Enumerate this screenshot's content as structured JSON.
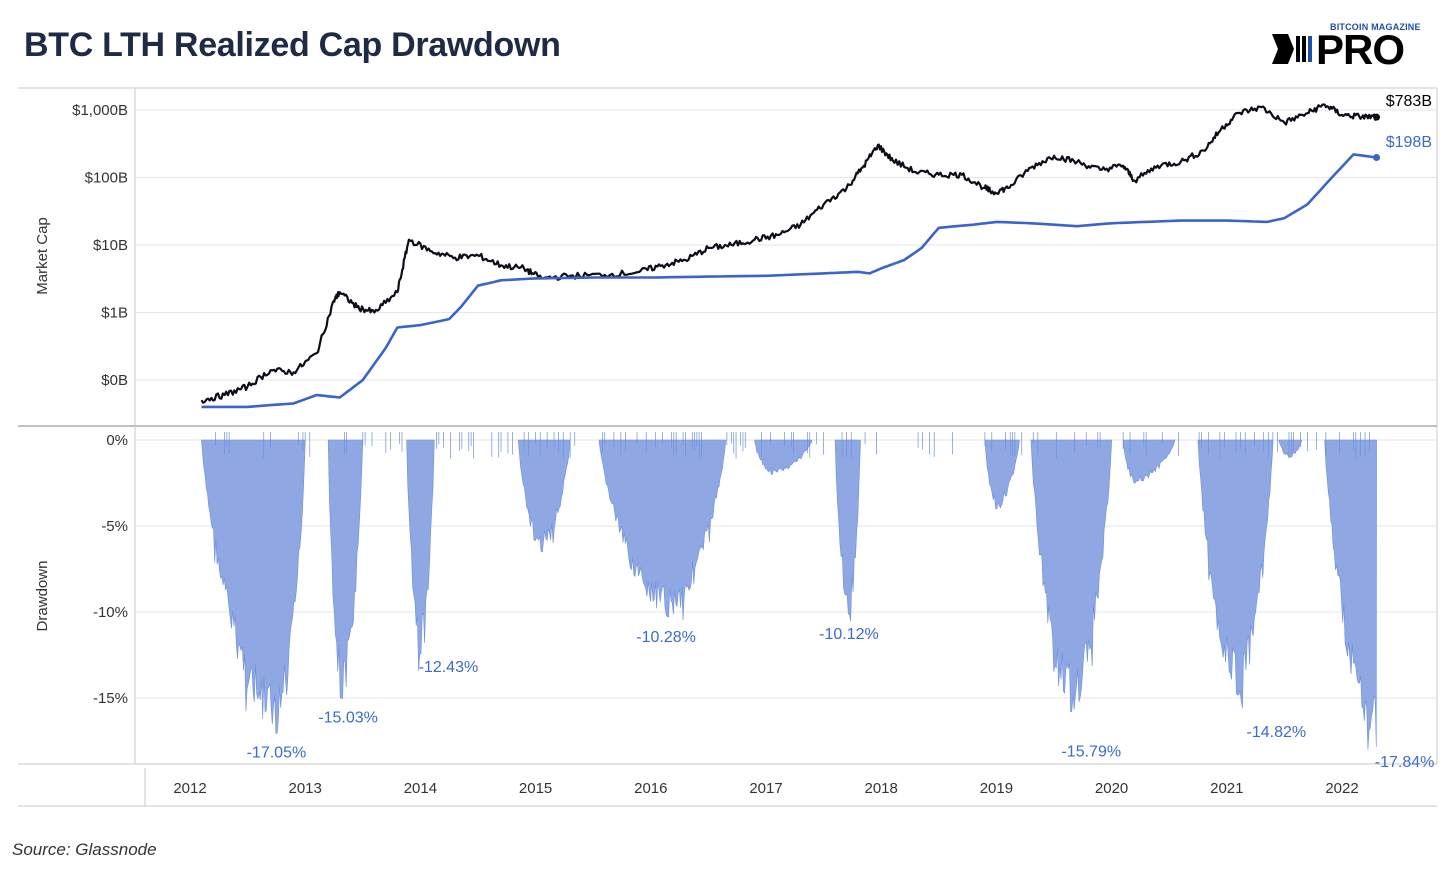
{
  "title": "BTC LTH Realized Cap Drawdown",
  "logo": {
    "top": "BITCOIN MAGAZINE",
    "main": "PRO"
  },
  "source": "Source: Glassnode",
  "colors": {
    "market_cap": "#0d0d1a",
    "realized_cap": "#3a64c8",
    "drawdown_fill": "#8fa8e3",
    "drawdown_edge": "#6d8fdc",
    "annotation": "#3b6ad0",
    "grid": "#e6e6e6",
    "frame": "#c8c8c8"
  },
  "chart_data": [
    {
      "type": "line",
      "ylabel": "Market Cap",
      "yscale": "log",
      "yticks": [
        "$0B",
        "$1B",
        "$10B",
        "$100B",
        "$1,000B"
      ],
      "ytick_values": [
        0.1,
        1,
        10,
        100,
        1000
      ],
      "xlabel": "",
      "xticks": [
        "2012",
        "2013",
        "2014",
        "2015",
        "2016",
        "2017",
        "2018",
        "2019",
        "2020",
        "2021",
        "2022"
      ],
      "series": [
        {
          "key": "market_cap",
          "end_label": "$783B",
          "x": [
            2012.1,
            2012.3,
            2012.5,
            2012.7,
            2012.9,
            2013.1,
            2013.25,
            2013.3,
            2013.45,
            2013.6,
            2013.8,
            2013.9,
            2014.1,
            2014.3,
            2014.5,
            2014.7,
            2014.9,
            2015.05,
            2015.3,
            2015.6,
            2015.9,
            2016.1,
            2016.3,
            2016.5,
            2016.7,
            2016.9,
            2017.1,
            2017.3,
            2017.5,
            2017.7,
            2017.85,
            2017.97,
            2018.1,
            2018.3,
            2018.5,
            2018.7,
            2018.9,
            2018.97,
            2019.1,
            2019.3,
            2019.5,
            2019.7,
            2019.9,
            2020.1,
            2020.2,
            2020.4,
            2020.6,
            2020.8,
            2020.95,
            2021.1,
            2021.3,
            2021.5,
            2021.7,
            2021.85,
            2022.0,
            2022.15,
            2022.3
          ],
          "y": [
            0.05,
            0.06,
            0.08,
            0.14,
            0.13,
            0.25,
            1.5,
            2.0,
            1.2,
            1.0,
            2.0,
            12.0,
            8.0,
            6.5,
            7.0,
            5.0,
            4.5,
            3.2,
            3.5,
            3.6,
            4.0,
            5.0,
            6.0,
            9.0,
            10.0,
            12.0,
            14.0,
            20.0,
            40.0,
            70.0,
            150.0,
            300.0,
            180.0,
            120.0,
            110.0,
            110.0,
            70.0,
            60.0,
            70.0,
            140.0,
            210.0,
            170.0,
            130.0,
            150.0,
            90.0,
            150.0,
            170.0,
            250.0,
            520.0,
            900.0,
            1100.0,
            650.0,
            900.0,
            1200.0,
            850.0,
            800.0,
            783.0
          ]
        },
        {
          "key": "realized_cap",
          "end_label": "$198B",
          "x": [
            2012.1,
            2012.5,
            2012.9,
            2013.1,
            2013.3,
            2013.5,
            2013.7,
            2013.8,
            2014.0,
            2014.25,
            2014.35,
            2014.5,
            2014.7,
            2015.0,
            2015.5,
            2016.0,
            2016.5,
            2017.0,
            2017.5,
            2017.8,
            2017.9,
            2018.0,
            2018.2,
            2018.35,
            2018.5,
            2018.8,
            2019.0,
            2019.3,
            2019.7,
            2020.0,
            2020.3,
            2020.6,
            2021.0,
            2021.35,
            2021.5,
            2021.7,
            2021.9,
            2022.1,
            2022.3
          ],
          "y": [
            0.04,
            0.04,
            0.045,
            0.06,
            0.055,
            0.1,
            0.3,
            0.6,
            0.65,
            0.8,
            1.2,
            2.5,
            3.0,
            3.2,
            3.3,
            3.3,
            3.4,
            3.5,
            3.8,
            4.0,
            3.8,
            4.5,
            6.0,
            9.0,
            18.0,
            20.0,
            22.0,
            21.0,
            19.0,
            21.0,
            22.0,
            23.0,
            23.0,
            22.0,
            25.0,
            40.0,
            95.0,
            220.0,
            198.0
          ]
        }
      ]
    },
    {
      "type": "area",
      "ylabel": "Drawdown",
      "yticks": [
        "0%",
        "-5%",
        "-10%",
        "-15%"
      ],
      "ytick_values": [
        0,
        -5,
        -10,
        -15
      ],
      "ylim": [
        -18,
        0
      ],
      "cycles": [
        {
          "start": 2012.1,
          "end": 2013.0,
          "min_x": 2012.75,
          "min": -17.05
        },
        {
          "start": 2013.2,
          "end": 2013.5,
          "min_x": 2013.32,
          "min": -15.03
        },
        {
          "start": 2013.88,
          "end": 2014.12,
          "min_x": 2014.0,
          "min": -12.43
        },
        {
          "start": 2014.85,
          "end": 2015.3,
          "min_x": 2015.05,
          "min": -6.5
        },
        {
          "start": 2015.55,
          "end": 2016.65,
          "min_x": 2016.15,
          "min": -10.28
        },
        {
          "start": 2016.9,
          "end": 2017.4,
          "min_x": 2017.05,
          "min": -2.0
        },
        {
          "start": 2017.6,
          "end": 2017.82,
          "min_x": 2017.72,
          "min": -10.12
        },
        {
          "start": 2018.9,
          "end": 2019.2,
          "min_x": 2019.0,
          "min": -4.0
        },
        {
          "start": 2019.3,
          "end": 2020.0,
          "min_x": 2019.65,
          "min": -15.79
        },
        {
          "start": 2020.1,
          "end": 2020.55,
          "min_x": 2020.2,
          "min": -2.5
        },
        {
          "start": 2020.75,
          "end": 2021.4,
          "min_x": 2021.1,
          "min": -14.82
        },
        {
          "start": 2021.45,
          "end": 2021.65,
          "min_x": 2021.55,
          "min": -1.0
        },
        {
          "start": 2021.85,
          "end": 2022.3,
          "min_x": 2022.3,
          "min": -17.84
        }
      ],
      "annotations": [
        {
          "x": 2012.75,
          "y": -17.05,
          "text": "-17.05%"
        },
        {
          "x": 2013.32,
          "y": -15.03,
          "text": "-15.03%"
        },
        {
          "x": 2014.0,
          "y": -12.43,
          "text": "-12.43%"
        },
        {
          "x": 2016.15,
          "y": -10.28,
          "text": "-10.28%"
        },
        {
          "x": 2017.72,
          "y": -10.12,
          "text": "-10.12%"
        },
        {
          "x": 2019.65,
          "y": -15.79,
          "text": "-15.79%"
        },
        {
          "x": 2021.1,
          "y": -14.82,
          "text": "-14.82%"
        },
        {
          "x": 2022.3,
          "y": -17.84,
          "text": "-17.84%"
        }
      ]
    }
  ]
}
